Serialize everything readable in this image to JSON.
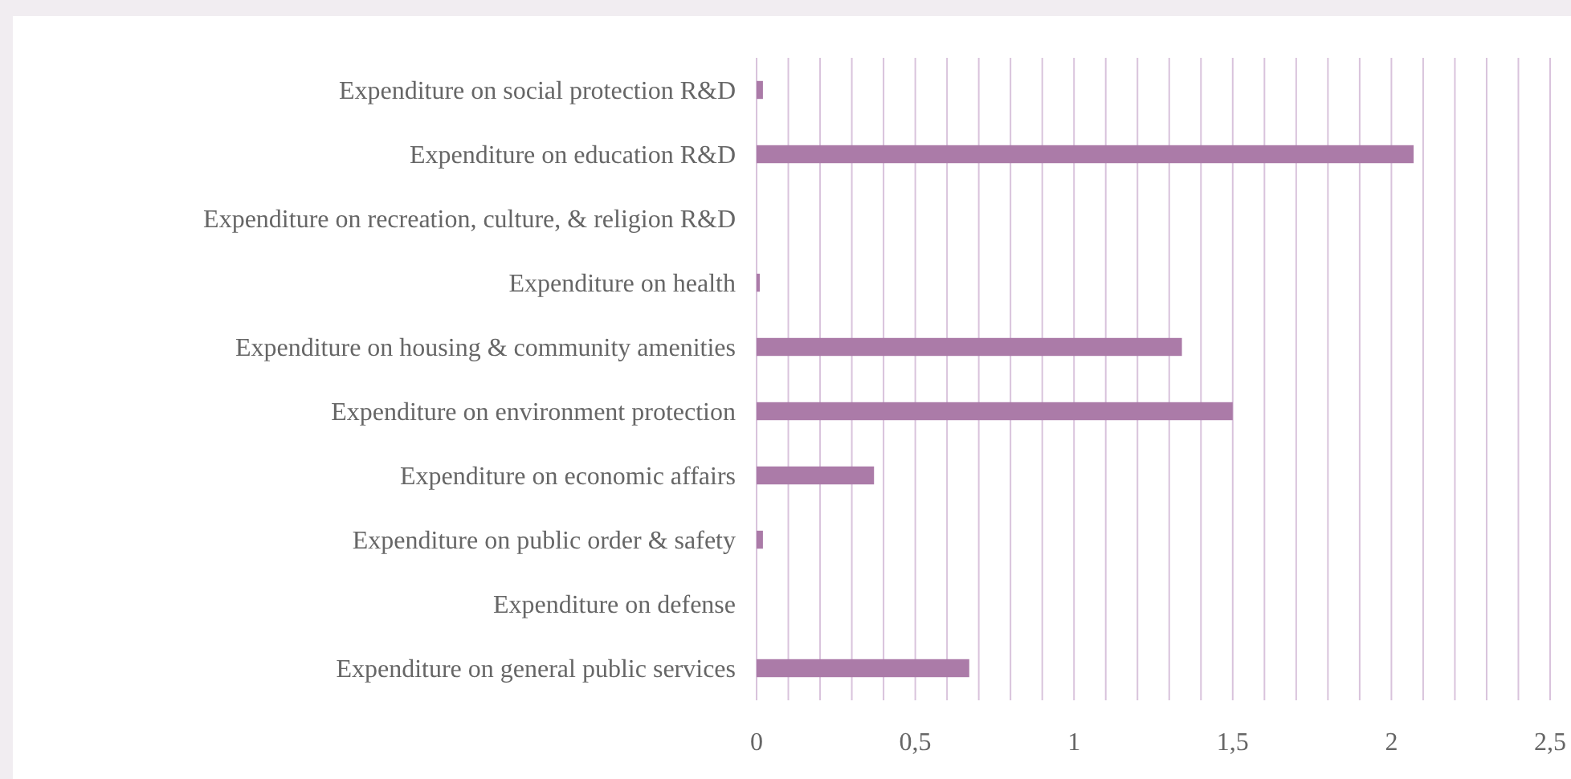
{
  "chart_data": {
    "type": "bar",
    "orientation": "horizontal",
    "categories": [
      "Expenditure on social protection R&D",
      "Expenditure on education R&D",
      "Expenditure on recreation, culture, & religion R&D",
      "Expenditure on health",
      "Expenditure on housing & community amenities",
      "Expenditure on environment protection",
      "Expenditure on economic affairs",
      "Expenditure on public order & safety",
      "Expenditure on defense",
      "Expenditure on general public services"
    ],
    "values": [
      0.02,
      2.07,
      0,
      0.01,
      1.34,
      1.5,
      0.37,
      0.02,
      0,
      0.67
    ],
    "color": "#ab7ba8",
    "xlim": [
      0,
      2.5
    ],
    "xticks": [
      0,
      {
        "value": 0.1,
        "label": null
      },
      {
        "value": 0.2,
        "label": null
      },
      {
        "value": 0.3,
        "label": null
      },
      {
        "value": 0.4,
        "label": null
      },
      {
        "value": 0.5,
        "label": "0,5"
      },
      {
        "value": 0.6,
        "label": null
      },
      {
        "value": 0.7,
        "label": null
      },
      {
        "value": 0.8,
        "label": null
      },
      {
        "value": 0.9,
        "label": null
      },
      1,
      {
        "value": 1.1,
        "label": null
      },
      {
        "value": 1.2,
        "label": null
      },
      {
        "value": 1.3,
        "label": null
      },
      {
        "value": 1.4,
        "label": null
      },
      {
        "value": 1.5,
        "label": "1,5"
      },
      {
        "value": 1.6,
        "label": null
      },
      {
        "value": 1.7,
        "label": null
      },
      {
        "value": 1.8,
        "label": null
      },
      {
        "value": 1.9,
        "label": null
      },
      2,
      {
        "value": 2.1,
        "label": null
      },
      {
        "value": 2.2,
        "label": null
      },
      {
        "value": 2.3,
        "label": null
      },
      {
        "value": 2.4,
        "label": null
      },
      {
        "value": 2.5,
        "label": "2,5"
      }
    ],
    "grid": "x"
  }
}
